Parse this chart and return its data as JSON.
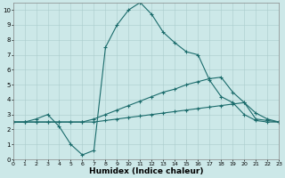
{
  "xlabel": "Humidex (Indice chaleur)",
  "bg_color": "#cce8e8",
  "grid_color": "#aacccc",
  "line_color": "#1a6b6b",
  "xlim": [
    0,
    23
  ],
  "ylim": [
    0,
    10.5
  ],
  "xticks": [
    0,
    1,
    2,
    3,
    4,
    5,
    6,
    7,
    8,
    9,
    10,
    11,
    12,
    13,
    14,
    15,
    16,
    17,
    18,
    19,
    20,
    21,
    22,
    23
  ],
  "yticks": [
    0,
    1,
    2,
    3,
    4,
    5,
    6,
    7,
    8,
    9,
    10
  ],
  "line1_x": [
    0,
    1,
    2,
    3,
    4,
    5,
    6,
    7,
    8,
    9,
    10,
    11,
    12,
    13,
    14,
    15,
    16,
    17,
    18,
    19,
    20,
    21,
    22,
    23
  ],
  "line1_y": [
    2.5,
    2.5,
    2.7,
    3.0,
    2.2,
    1.0,
    0.3,
    0.6,
    7.5,
    9.0,
    10.0,
    10.5,
    9.7,
    8.5,
    7.8,
    7.2,
    7.0,
    5.3,
    4.2,
    3.8,
    3.0,
    2.6,
    2.5,
    2.5
  ],
  "line2_x": [
    0,
    1,
    2,
    3,
    4,
    5,
    6,
    7,
    8,
    9,
    10,
    11,
    12,
    13,
    14,
    15,
    16,
    17,
    18,
    19,
    20,
    21,
    22,
    23
  ],
  "line2_y": [
    2.5,
    2.5,
    2.5,
    2.5,
    2.5,
    2.5,
    2.5,
    2.7,
    3.0,
    3.3,
    3.6,
    3.9,
    4.2,
    4.5,
    4.7,
    5.0,
    5.2,
    5.4,
    5.5,
    4.5,
    3.8,
    3.1,
    2.7,
    2.5
  ],
  "line3_x": [
    0,
    1,
    2,
    3,
    4,
    5,
    6,
    7,
    8,
    9,
    10,
    11,
    12,
    13,
    14,
    15,
    16,
    17,
    18,
    19,
    20,
    21,
    22,
    23
  ],
  "line3_y": [
    2.5,
    2.5,
    2.5,
    2.5,
    2.5,
    2.5,
    2.5,
    2.5,
    2.6,
    2.7,
    2.8,
    2.9,
    3.0,
    3.1,
    3.2,
    3.3,
    3.4,
    3.5,
    3.6,
    3.7,
    3.8,
    2.7,
    2.6,
    2.5
  ]
}
